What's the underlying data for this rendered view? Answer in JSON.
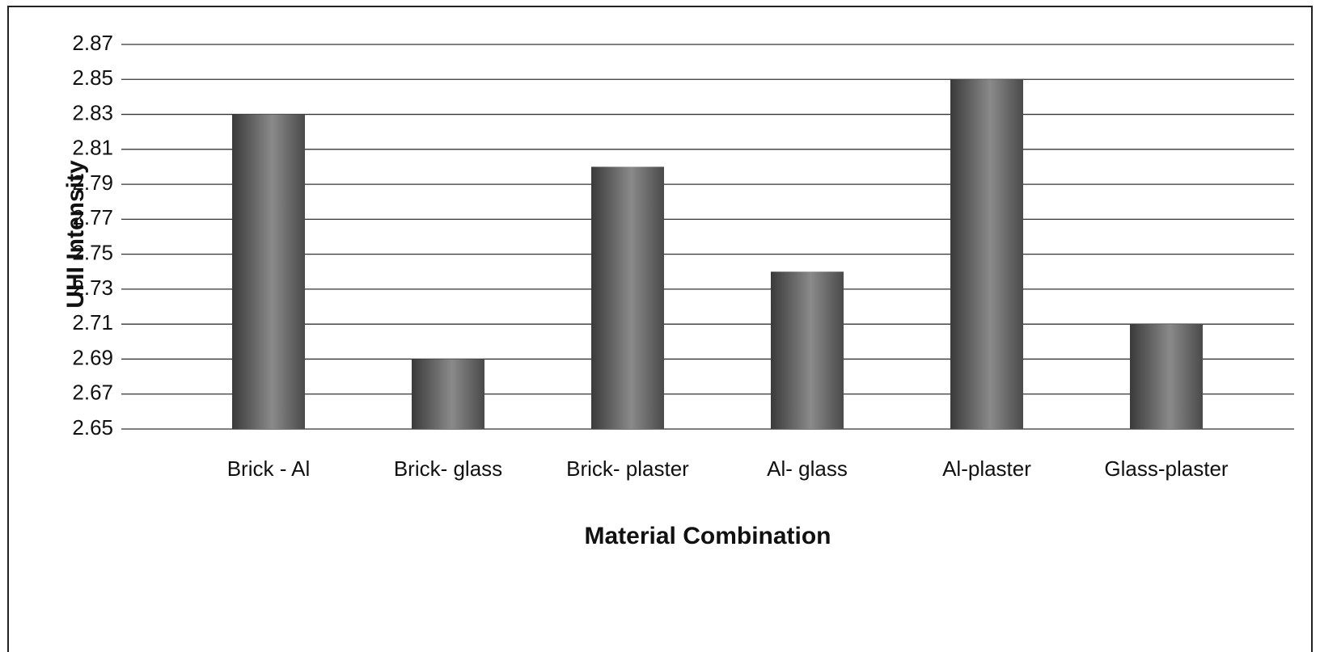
{
  "chart_data": {
    "type": "bar",
    "categories": [
      "Brick - Al",
      "Brick- glass",
      "Brick- plaster",
      "Al- glass",
      "Al-plaster",
      "Glass-plaster"
    ],
    "values": [
      2.83,
      2.69,
      2.8,
      2.74,
      2.85,
      2.71
    ],
    "color": "#8a8a8a",
    "xlabel": "Material Combination",
    "ylabel": "UHI Intensity",
    "ylim": [
      2.65,
      2.87
    ],
    "yticks": [
      2.65,
      2.67,
      2.69,
      2.71,
      2.73,
      2.75,
      2.77,
      2.79,
      2.81,
      2.83,
      2.85,
      2.87
    ],
    "grid": true
  }
}
